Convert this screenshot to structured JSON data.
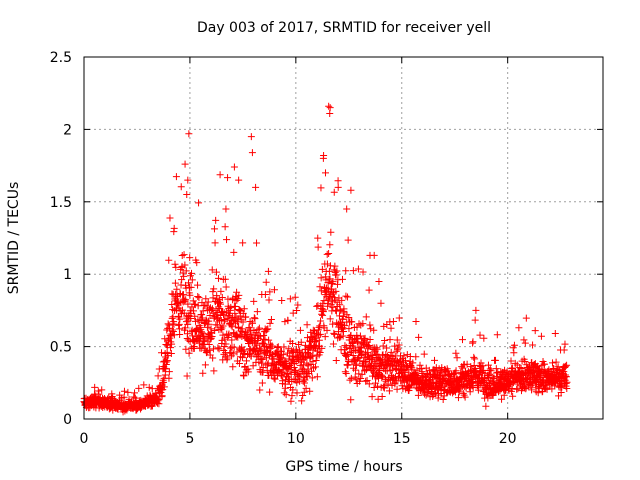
{
  "chart_data": {
    "type": "scatter",
    "title": "Day 003 of 2017, SRMTID for receiver yell",
    "xlabel": "GPS time / hours",
    "ylabel": "SRMTID / TECUs",
    "xlim": [
      0,
      24.5
    ],
    "ylim": [
      0,
      2.5
    ],
    "xticks": [
      0,
      5,
      10,
      15,
      20
    ],
    "xtick_labels": [
      "0",
      "5",
      "10",
      "15",
      "20"
    ],
    "yticks": [
      0,
      0.5,
      1,
      1.5,
      2,
      2.5
    ],
    "ytick_labels": [
      "0",
      "0.5",
      "1",
      "1.5",
      "2",
      "2.5"
    ],
    "grid": true,
    "marker": "+",
    "color": "#ff0000",
    "series": [
      {
        "name": "SRMTID",
        "envelope": {
          "x": [
            0,
            0.5,
            1,
            1.5,
            2,
            2.5,
            3,
            3.5,
            3.8,
            4,
            4.2,
            4.5,
            4.8,
            5,
            5.3,
            5.6,
            6,
            6.3,
            6.6,
            7,
            7.3,
            7.6,
            8,
            8.3,
            8.6,
            9,
            9.5,
            10,
            10.5,
            11,
            11.3,
            11.6,
            12,
            12.5,
            13,
            13.5,
            14,
            14.5,
            15,
            15.5,
            16,
            16.5,
            17,
            17.5,
            18,
            18.5,
            19,
            19.5,
            20,
            20.5,
            21,
            21.5,
            22,
            22.5,
            22.8
          ],
          "median": [
            0.12,
            0.12,
            0.11,
            0.1,
            0.09,
            0.09,
            0.12,
            0.15,
            0.3,
            0.55,
            0.75,
            0.8,
            0.85,
            0.75,
            0.7,
            0.6,
            0.6,
            0.7,
            0.65,
            0.6,
            0.7,
            0.5,
            0.55,
            0.45,
            0.45,
            0.4,
            0.35,
            0.35,
            0.4,
            0.55,
            0.85,
            0.95,
            0.75,
            0.5,
            0.45,
            0.4,
            0.35,
            0.35,
            0.35,
            0.3,
            0.25,
            0.25,
            0.25,
            0.25,
            0.28,
            0.3,
            0.25,
            0.25,
            0.25,
            0.28,
            0.3,
            0.3,
            0.28,
            0.28,
            0.28
          ],
          "spread": [
            0.05,
            0.05,
            0.04,
            0.04,
            0.04,
            0.04,
            0.05,
            0.06,
            0.15,
            0.3,
            0.35,
            0.35,
            0.4,
            0.35,
            0.3,
            0.3,
            0.35,
            0.35,
            0.35,
            0.35,
            0.35,
            0.3,
            0.3,
            0.25,
            0.25,
            0.2,
            0.2,
            0.2,
            0.25,
            0.3,
            0.35,
            0.4,
            0.35,
            0.3,
            0.25,
            0.2,
            0.2,
            0.18,
            0.15,
            0.15,
            0.12,
            0.12,
            0.12,
            0.12,
            0.15,
            0.15,
            0.12,
            0.12,
            0.12,
            0.12,
            0.14,
            0.14,
            0.12,
            0.12,
            0.12
          ]
        },
        "outliers": [
          [
            4.95,
            1.97
          ],
          [
            4.9,
            1.65
          ],
          [
            4.85,
            1.55
          ],
          [
            6.7,
            1.45
          ],
          [
            7.1,
            1.74
          ],
          [
            7.3,
            1.65
          ],
          [
            7.9,
            1.95
          ],
          [
            7.95,
            1.84
          ],
          [
            8.1,
            1.6
          ],
          [
            11.55,
            2.16
          ],
          [
            11.62,
            2.15
          ],
          [
            11.6,
            2.11
          ],
          [
            11.3,
            1.8
          ],
          [
            11.4,
            1.7
          ],
          [
            12.0,
            1.6
          ],
          [
            12.6,
            1.58
          ],
          [
            12.4,
            1.45
          ],
          [
            13.5,
            1.13
          ],
          [
            13.7,
            1.13
          ],
          [
            18.5,
            0.75
          ],
          [
            21.3,
            0.61
          ]
        ],
        "n_points": 2400,
        "seed": 3
      }
    ]
  }
}
